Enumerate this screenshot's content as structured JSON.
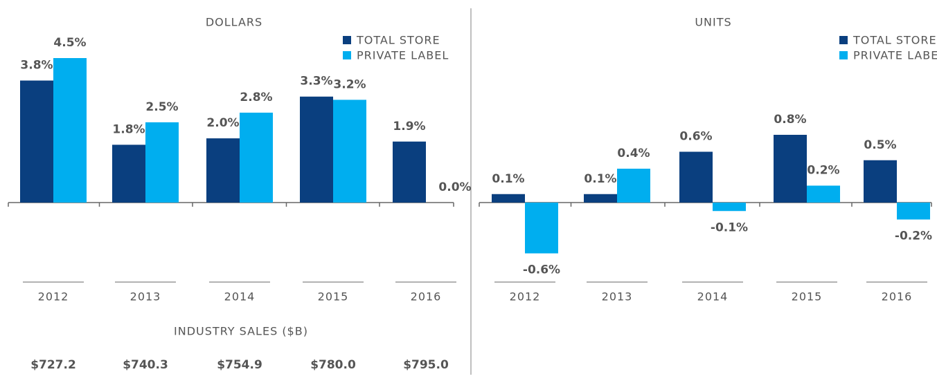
{
  "chart_data": [
    {
      "type": "bar",
      "title": "DOLLARS",
      "categories": [
        "2012",
        "2013",
        "2014",
        "2015",
        "2016"
      ],
      "series": [
        {
          "name": "TOTAL  STORE",
          "color": "#0a3f7f",
          "values": [
            3.8,
            1.8,
            2.0,
            3.3,
            1.9
          ],
          "value_labels": [
            "3.8%",
            "1.8%",
            "2.0%",
            "3.3%",
            "1.9%"
          ]
        },
        {
          "name": "PRIVATE LABEL",
          "color": "#00aeef",
          "values": [
            4.5,
            2.5,
            2.8,
            3.2,
            0.0
          ],
          "value_labels": [
            "4.5%",
            "2.5%",
            "2.8%",
            "3.2%",
            "0.0%"
          ]
        }
      ]
    },
    {
      "type": "bar",
      "title": "UNITS",
      "categories": [
        "2012",
        "2013",
        "2014",
        "2015",
        "2016"
      ],
      "series": [
        {
          "name": "TOTAL  STORE",
          "color": "#0a3f7f",
          "values": [
            0.1,
            0.1,
            0.6,
            0.8,
            0.5
          ],
          "value_labels": [
            "0.1%",
            "0.1%",
            "0.6%",
            "0.8%",
            "0.5%"
          ]
        },
        {
          "name": "PRIVATE LABEL",
          "color": "#00aeef",
          "values": [
            -0.6,
            0.4,
            -0.1,
            0.2,
            -0.2
          ],
          "value_labels": [
            "-0.6%",
            "0.4%",
            "-0.1%",
            "0.2%",
            "-0.2%"
          ]
        }
      ]
    }
  ],
  "industry_sales": {
    "title": "INDUSTRY SALES ($B)",
    "values": [
      "$727.2",
      "$740.3",
      "$754.9",
      "$780.0",
      "$795.0"
    ]
  }
}
